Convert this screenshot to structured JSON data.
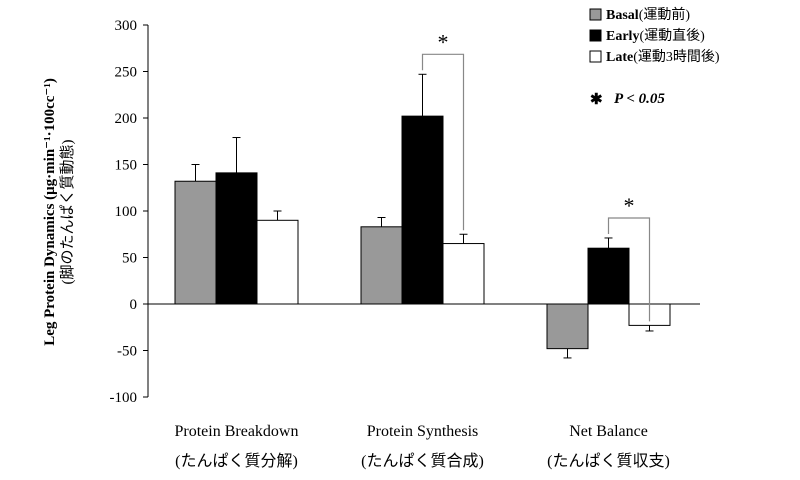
{
  "chart_data": {
    "type": "bar",
    "categories": [
      {
        "en": "Protein Breakdown",
        "jp": "(たんぱく質分解)"
      },
      {
        "en": "Protein Synthesis",
        "jp": "(たんぱく質合成)"
      },
      {
        "en": "Net Balance",
        "jp": "(たんぱく質収支)"
      }
    ],
    "series": [
      {
        "name": "Basal",
        "name_jp": "(運動前)",
        "color": "#999999",
        "values": [
          132,
          83,
          -48
        ],
        "errors": [
          18,
          10,
          10
        ]
      },
      {
        "name": "Early",
        "name_jp": "(運動直後)",
        "color": "#000000",
        "values": [
          141,
          202,
          60
        ],
        "errors": [
          38,
          45,
          11
        ]
      },
      {
        "name": "Late",
        "name_jp": "(運動3時間後)",
        "color": "#ffffff",
        "values": [
          90,
          65,
          -23
        ],
        "errors": [
          10,
          10,
          6
        ]
      }
    ],
    "ylim": [
      -100,
      300
    ],
    "yticks": [
      300,
      250,
      200,
      150,
      100,
      50,
      0,
      -50,
      -100
    ],
    "ylabel_main": "Leg Protein Dynamics (μg·min⁻¹·100cc⁻¹)",
    "ylabel_jp": "(脚のたんぱく質動態)",
    "significance": [
      {
        "category": 1,
        "from_series": 1,
        "to_series": 2,
        "mark": "*"
      },
      {
        "category": 2,
        "from_series": 1,
        "to_series": 2,
        "mark": "*"
      }
    ],
    "legend_position": "top-right",
    "legend_note": {
      "star": "✱",
      "text": "P < 0.05"
    }
  }
}
